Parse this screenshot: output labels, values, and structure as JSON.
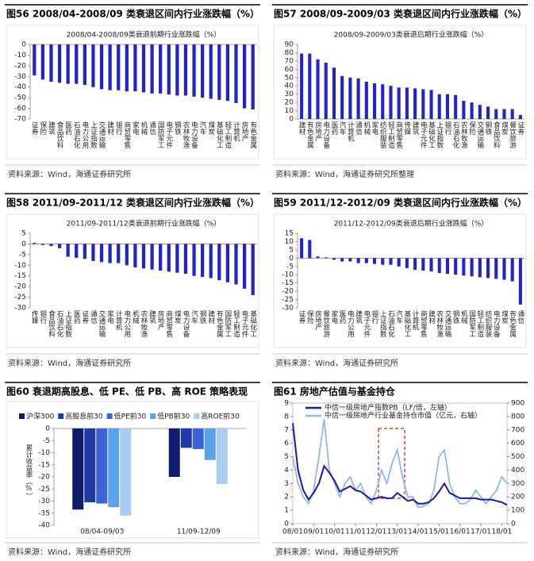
{
  "chart_data": [
    {
      "type": "bar",
      "heading": "图56 2008/04-2008/09 类衰退区间内行业涨跌幅（%）",
      "title": "2008/04-2008/09类衰退前期行业涨跌幅（%）",
      "source": "资料来源：Wind，海通证券研究所",
      "categories": [
        "证券",
        "保险",
        "建筑",
        "食品饮料",
        "医药",
        "石油石化",
        "电力公用",
        "上证指数",
        "交通运输",
        "建材",
        "银行",
        "商贸零售",
        "家电",
        "机械",
        "通信",
        "国防军工",
        "电子元件",
        "钢铁",
        "农林牧渔",
        "电力设备",
        "汽车",
        "煤炭",
        "基础化工",
        "轻工制造",
        "计算机",
        "房地产",
        "有色金属"
      ],
      "values": [
        -29,
        -33,
        -35,
        -36,
        -37,
        -37,
        -38,
        -40,
        -42,
        -43,
        -43,
        -44,
        -44,
        -45,
        -46,
        -46,
        -47,
        -48,
        -48,
        -49,
        -50,
        -51,
        -52,
        -53,
        -55,
        -60,
        -61
      ],
      "color": "#2323c8",
      "ylim": [
        -70,
        0
      ],
      "yticks": [
        -70,
        -60,
        -50,
        -40,
        -30,
        -20,
        -10,
        0
      ]
    },
    {
      "type": "bar",
      "heading": "图57 2008/09-2009/03 类衰退区间内行业涨跌幅（%）",
      "title": "2008/09-2009/03类衰退后期行业涨跌幅（%）",
      "source": "资料来源：Wind，海通证券研究所整理",
      "categories": [
        "建材",
        "有色金属",
        "房地产",
        "电力设备",
        "医药",
        "汽车",
        "计算机",
        "通信",
        "机械",
        "家电",
        "纺织服装",
        "轻工制造",
        "商贸零售",
        "传媒",
        "建筑",
        "电子元件",
        "基础化工",
        "上证指数",
        "银行",
        "石油石化",
        "农林牧渔",
        "保险",
        "交通运输",
        "钢铁",
        "食品饮料",
        "煤炭",
        "餐饮旅游",
        "证券"
      ],
      "values": [
        79,
        79,
        72,
        68,
        62,
        52,
        50,
        49,
        45,
        43,
        42,
        40,
        38,
        38,
        37,
        36,
        35,
        30,
        30,
        29,
        22,
        20,
        17,
        15,
        12,
        12,
        12,
        5
      ],
      "color": "#2323c8",
      "ylim": [
        0,
        90
      ],
      "yticks": [
        0,
        10,
        20,
        30,
        40,
        50,
        60,
        70,
        80,
        90
      ]
    },
    {
      "type": "bar",
      "heading": "图58 2011/09-2011/12 类衰退区间内行业涨跌幅（%）",
      "title": "2011/09-2011/12类衰退前期行业涨跌幅（%）",
      "source": "资料来源：Wind，海通证券研究所",
      "categories": [
        "传媒",
        "银行",
        "食品饮料",
        "石油石化",
        "上证指数",
        "医药",
        "证券",
        "通信",
        "交通运输",
        "家电",
        "计算机",
        "电力公用",
        "机械",
        "农林牧渔",
        "建筑",
        "房地产",
        "商贸零售",
        "煤炭",
        "电力设备",
        "汽车",
        "钢铁",
        "建材",
        "有色金属",
        "国防军工",
        "轻工制造",
        "电子元件",
        "基础化工"
      ],
      "values": [
        0.5,
        -0.5,
        -1,
        -2,
        -6,
        -6.5,
        -7,
        -8,
        -8.5,
        -9,
        -9,
        -10,
        -11,
        -11.5,
        -12,
        -12.5,
        -13,
        -13.5,
        -14,
        -15,
        -15.5,
        -16,
        -17,
        -18,
        -19,
        -21,
        -24
      ],
      "color": "#2323c8",
      "ylim": [
        -30,
        5
      ],
      "yticks": [
        -30,
        -25,
        -20,
        -15,
        -10,
        -5,
        0,
        5
      ]
    },
    {
      "type": "bar",
      "heading": "图59 2011/12-2012/09 类衰退区间内行业涨跌幅（%）",
      "title": "2011/12-2012/09类衰退后期行业涨跌幅（%）",
      "source": "资料来源：Wind，海通证券研究所",
      "categories": [
        "证券",
        "保险",
        "房地产",
        "餐饮旅游",
        "家电",
        "医药",
        "电力公用",
        "建筑",
        "电子元件",
        "银行",
        "上证指数",
        "石油石化",
        "汽车",
        "基础化工",
        "计算机",
        "商贸零售",
        "建材",
        "农林牧渔",
        "交通运输",
        "钢铁",
        "机械",
        "国防军工",
        "轻工制造",
        "纺织服装",
        "电力设备",
        "煤炭",
        "有色金属",
        "通信"
      ],
      "values": [
        12,
        11,
        1,
        0.5,
        -1,
        -2,
        -2,
        -3,
        -3,
        -3.5,
        -4,
        -4,
        -5,
        -6,
        -7,
        -7.5,
        -8,
        -9,
        -9.5,
        -10,
        -10.5,
        -11,
        -11.5,
        -12,
        -12.5,
        -13,
        -14,
        -28
      ],
      "color": "#2323c8",
      "ylim": [
        -30,
        15
      ],
      "yticks": [
        -30,
        -25,
        -20,
        -15,
        -10,
        -5,
        0,
        5,
        10,
        15
      ]
    },
    {
      "type": "grouped_bar",
      "heading": "图60 衰退期高股息、低 PE、低 PB、高 ROE 策略表现",
      "source": "资料来源：Wind，海通证券研究所",
      "ylabel": "累计收益率（%）",
      "categories": [
        "08/04-09/03",
        "11/09-12/09"
      ],
      "series": [
        {
          "name": "沪深300",
          "color": "#101c6e",
          "values": [
            -33.5,
            -20
          ]
        },
        {
          "name": "高股息前30",
          "color": "#1f3aa8",
          "values": [
            -30.5,
            -8
          ]
        },
        {
          "name": "低PE前30",
          "color": "#3a64d8",
          "values": [
            -31,
            -8.5
          ]
        },
        {
          "name": "低PB前30",
          "color": "#5aa2ea",
          "values": [
            -32.5,
            -13
          ]
        },
        {
          "name": "高ROE前30",
          "color": "#a9cdf2",
          "values": [
            -36,
            -23
          ]
        }
      ],
      "ylim": [
        -40,
        0
      ],
      "yticks": [
        -40,
        -35,
        -30,
        -25,
        -20,
        -15,
        -10,
        -5,
        0
      ]
    },
    {
      "type": "line",
      "heading": "图61 房地产估值与基金持仓",
      "source": "资料来源：Wind，海通证券研究所",
      "x": [
        "08/01",
        "08/04",
        "08/07",
        "08/10",
        "09/01",
        "09/04",
        "09/07",
        "09/10",
        "10/01",
        "10/04",
        "10/07",
        "10/10",
        "11/01",
        "11/04",
        "11/07",
        "11/10",
        "12/01",
        "12/04",
        "12/07",
        "12/10",
        "13/01",
        "13/04",
        "13/07",
        "13/10",
        "14/01",
        "14/04",
        "14/07",
        "14/10",
        "15/01",
        "15/04",
        "15/07",
        "15/10",
        "16/01",
        "16/04",
        "16/07",
        "16/10",
        "17/01",
        "17/04",
        "17/07",
        "17/10",
        "18/01",
        "18/04"
      ],
      "xticks": [
        "08/01",
        "09/01",
        "10/01",
        "11/01",
        "12/01",
        "13/01",
        "14/01",
        "15/01",
        "16/01",
        "17/01",
        "18/01"
      ],
      "series": [
        {
          "name": "中信一级房地产指数PB（LF/倍，左轴）",
          "color": "#1a1aa6",
          "values": [
            7.5,
            4,
            2.5,
            1.8,
            2.3,
            3,
            4.3,
            3.8,
            3.2,
            2.4,
            2.6,
            2.8,
            2.5,
            2.4,
            2.1,
            1.8,
            1.9,
            2.0,
            1.9,
            1.9,
            2.3,
            2.0,
            1.7,
            1.8,
            1.5,
            1.5,
            1.6,
            1.9,
            2.4,
            3.0,
            2.3,
            2.1,
            1.9,
            1.9,
            1.9,
            1.9,
            1.8,
            1.8,
            1.8,
            1.7,
            1.6,
            1.4
          ]
        },
        {
          "name": "中信一级房地产行业基金持仓市值（亿元，右轴）",
          "color": "#8fb8e8",
          "axis": "y2",
          "values": [
            500,
            300,
            200,
            150,
            250,
            500,
            780,
            400,
            300,
            200,
            300,
            350,
            250,
            300,
            200,
            150,
            250,
            400,
            300,
            450,
            550,
            350,
            200,
            200,
            120,
            130,
            150,
            250,
            500,
            550,
            300,
            200,
            150,
            150,
            180,
            250,
            200,
            150,
            200,
            250,
            350,
            300
          ]
        }
      ],
      "ylim": [
        0,
        9
      ],
      "yticks": [
        0,
        1,
        2,
        3,
        4,
        5,
        6,
        7,
        8,
        9
      ],
      "y2lim": [
        0,
        900
      ],
      "y2ticks": [
        0,
        100,
        200,
        300,
        400,
        500,
        600,
        700,
        800,
        900
      ]
    }
  ]
}
